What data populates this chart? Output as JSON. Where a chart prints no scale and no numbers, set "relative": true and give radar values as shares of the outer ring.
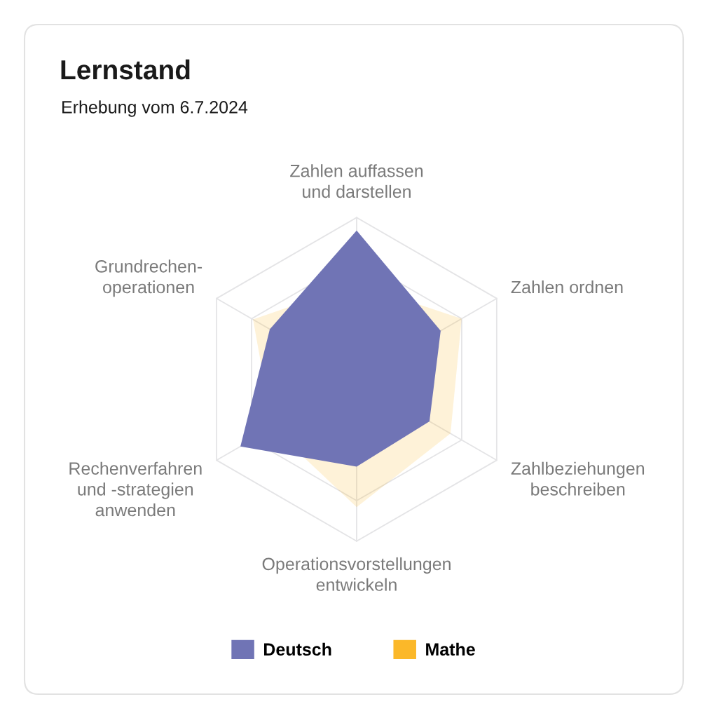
{
  "chart_data": {
    "type": "radar",
    "title": "Lernstand",
    "subtitle": "Erhebung vom 6.7.2024",
    "relative": true,
    "categories": [
      "Zahlen auffassen\nund darstellen",
      "Zahlen ordnen",
      "Zahlbeziehungen\nbeschreiben",
      "Operationsvorstellungen\nentwickeln",
      "Rechenverfahren\nund -strategien\nanwenden",
      "Grundrechen-\noperationen"
    ],
    "series": [
      {
        "name": "Deutsch",
        "color": "#7074b5",
        "values": [
          0.92,
          0.6,
          0.52,
          0.54,
          0.83,
          0.62
        ]
      },
      {
        "name": "Mathe",
        "color": "#fbb829",
        "values": [
          0.59,
          0.75,
          0.67,
          0.79,
          0.6,
          0.74
        ]
      }
    ],
    "legend": "bottom",
    "grid": true
  }
}
